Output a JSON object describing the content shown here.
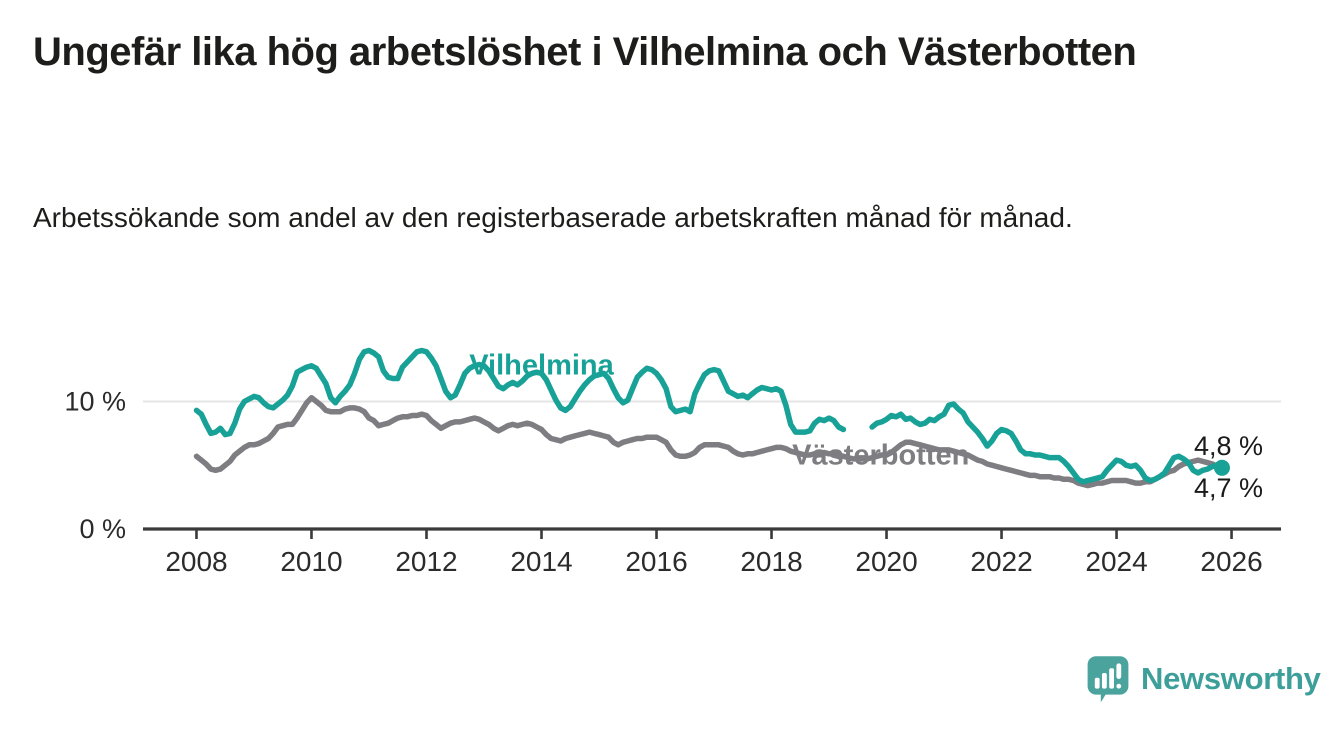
{
  "header": {
    "title": "Ungefär lika hög arbetslöshet i Vilhelmina och Västerbotten",
    "subtitle": "Arbetssökande som andel av den registerbaserade arbetskraften månad för månad."
  },
  "chart_data": {
    "type": "line",
    "unit": "%",
    "title": "Ungefär lika hög arbetslöshet i Vilhelmina och Västerbotten",
    "xlabel": "",
    "ylabel": "",
    "xlim": [
      2007.07,
      2026.86
    ],
    "ylim": [
      0,
      14.9
    ],
    "grid_values": [
      10
    ],
    "legend_position": "inline-labels",
    "x_ticks": [
      {
        "value": 2008,
        "label": "2008"
      },
      {
        "value": 2010,
        "label": "2010"
      },
      {
        "value": 2012,
        "label": "2012"
      },
      {
        "value": 2014,
        "label": "2014"
      },
      {
        "value": 2016,
        "label": "2016"
      },
      {
        "value": 2018,
        "label": "2018"
      },
      {
        "value": 2020,
        "label": "2020"
      },
      {
        "value": 2022,
        "label": "2022"
      },
      {
        "value": 2024,
        "label": "2024"
      },
      {
        "value": 2026,
        "label": "2026"
      }
    ],
    "y_ticks": [
      {
        "value": 0,
        "label": "0 %"
      },
      {
        "value": 10,
        "label": "10 %"
      }
    ],
    "series": [
      {
        "name": "Vilhelmina",
        "color": "#18a197",
        "line_width": 5.5,
        "end_dot": true,
        "label_anchor": {
          "x": 2014.0,
          "y": 12.9
        },
        "start": 2008.0,
        "points_per_year": 12,
        "values": [
          9.3,
          9.0,
          8.2,
          7.5,
          7.6,
          7.9,
          7.4,
          7.5,
          8.3,
          9.4,
          10.0,
          10.2,
          10.4,
          10.3,
          9.9,
          9.6,
          9.5,
          9.8,
          10.1,
          10.5,
          11.2,
          12.3,
          12.5,
          12.7,
          12.8,
          12.6,
          12.0,
          11.4,
          10.3,
          9.9,
          10.4,
          10.8,
          11.3,
          12.2,
          13.3,
          13.9,
          14.0,
          13.8,
          13.5,
          12.4,
          11.9,
          11.8,
          11.8,
          12.7,
          13.1,
          13.5,
          13.9,
          14.0,
          13.9,
          13.4,
          12.8,
          11.8,
          10.8,
          10.3,
          10.5,
          11.3,
          12.2,
          12.6,
          12.8,
          12.9,
          12.8,
          12.4,
          11.8,
          11.2,
          11.0,
          11.3,
          11.5,
          11.3,
          11.6,
          12.0,
          12.2,
          12.3,
          12.2,
          11.7,
          10.9,
          10.1,
          9.5,
          9.3,
          9.6,
          10.2,
          10.8,
          11.3,
          11.7,
          12.0,
          12.1,
          12.2,
          11.8,
          11.0,
          10.3,
          9.9,
          10.1,
          11.0,
          11.9,
          12.3,
          12.6,
          12.5,
          12.2,
          11.7,
          11.0,
          9.6,
          9.2,
          9.3,
          9.4,
          9.2,
          10.6,
          11.4,
          12.1,
          12.4,
          12.5,
          12.4,
          11.6,
          10.8,
          10.6,
          10.4,
          10.5,
          10.3,
          10.6,
          10.9,
          11.1,
          11.0,
          10.9,
          11.0,
          10.8,
          9.7,
          8.2,
          7.6,
          7.6,
          7.6,
          7.7,
          8.3,
          8.6,
          8.5,
          8.7,
          8.5,
          8.0,
          7.8,
          null,
          null,
          null,
          null,
          null,
          8.0,
          8.3,
          8.4,
          8.6,
          8.9,
          8.8,
          9.0,
          8.6,
          8.7,
          8.4,
          8.2,
          8.3,
          8.6,
          8.5,
          8.8,
          9.0,
          9.7,
          9.8,
          9.4,
          9.1,
          8.4,
          8.0,
          7.6,
          7.1,
          6.5,
          6.9,
          7.5,
          7.8,
          7.7,
          7.5,
          6.9,
          6.2,
          5.9,
          5.9,
          5.8,
          5.8,
          5.7,
          5.6,
          5.6,
          5.6,
          5.3,
          4.9,
          4.4,
          3.9,
          3.7,
          3.8,
          3.9,
          4.0,
          4.1,
          4.6,
          5.0,
          5.4,
          5.3,
          5.0,
          4.9,
          5.0,
          4.6,
          4.0,
          3.8,
          3.9,
          4.1,
          4.4,
          5.0,
          5.6,
          5.7,
          5.5,
          5.2,
          4.6,
          4.4,
          4.6,
          4.7,
          4.9,
          5.0,
          4.8
        ]
      },
      {
        "name": "Västerbotten",
        "color": "#7d7d82",
        "line_width": 5.5,
        "end_dot": false,
        "label_anchor": {
          "x": 2019.9,
          "y": 5.85
        },
        "start": 2008.0,
        "points_per_year": 12,
        "values": [
          5.7,
          5.4,
          5.1,
          4.7,
          4.6,
          4.7,
          5.0,
          5.3,
          5.8,
          6.1,
          6.4,
          6.6,
          6.6,
          6.7,
          6.9,
          7.1,
          7.5,
          8.0,
          8.1,
          8.2,
          8.2,
          8.7,
          9.3,
          9.9,
          10.3,
          10.0,
          9.7,
          9.3,
          9.2,
          9.2,
          9.2,
          9.4,
          9.5,
          9.5,
          9.4,
          9.2,
          8.7,
          8.5,
          8.1,
          8.2,
          8.3,
          8.5,
          8.7,
          8.8,
          8.8,
          8.9,
          8.9,
          9.0,
          8.9,
          8.5,
          8.2,
          7.9,
          8.1,
          8.3,
          8.4,
          8.4,
          8.5,
          8.6,
          8.7,
          8.6,
          8.4,
          8.2,
          7.9,
          7.7,
          7.9,
          8.1,
          8.2,
          8.1,
          8.2,
          8.3,
          8.2,
          8.0,
          7.8,
          7.4,
          7.1,
          7.0,
          6.9,
          7.1,
          7.2,
          7.3,
          7.4,
          7.5,
          7.6,
          7.5,
          7.4,
          7.3,
          7.2,
          6.8,
          6.6,
          6.8,
          6.9,
          7.0,
          7.1,
          7.1,
          7.2,
          7.2,
          7.2,
          7.0,
          6.8,
          6.2,
          5.8,
          5.7,
          5.7,
          5.8,
          6.0,
          6.4,
          6.6,
          6.6,
          6.6,
          6.6,
          6.5,
          6.4,
          6.1,
          5.9,
          5.8,
          5.9,
          5.9,
          6.0,
          6.1,
          6.2,
          6.3,
          6.4,
          6.4,
          6.3,
          6.1,
          6.0,
          5.9,
          5.8,
          5.8,
          5.9,
          5.9,
          6.0,
          5.9,
          5.9,
          5.8,
          5.7,
          5.6,
          5.5,
          5.5,
          5.5,
          5.5,
          5.6,
          5.7,
          5.8,
          5.8,
          6.0,
          6.3,
          6.6,
          6.8,
          6.8,
          6.7,
          6.6,
          6.5,
          6.4,
          6.3,
          6.2,
          6.2,
          6.2,
          6.1,
          6.0,
          5.9,
          5.8,
          5.6,
          5.4,
          5.3,
          5.1,
          5.0,
          4.9,
          4.8,
          4.7,
          4.6,
          4.5,
          4.4,
          4.3,
          4.2,
          4.2,
          4.1,
          4.1,
          4.1,
          4.0,
          4.0,
          3.9,
          3.9,
          3.8,
          3.6,
          3.5,
          3.4,
          3.5,
          3.6,
          3.6,
          3.7,
          3.8,
          3.8,
          3.8,
          3.8,
          3.7,
          3.6,
          3.6,
          3.7,
          3.7,
          3.9,
          4.1,
          4.3,
          4.5,
          4.6,
          4.9,
          5.1,
          5.2,
          5.3,
          5.4,
          5.3,
          5.2,
          5.1,
          4.9,
          4.7
        ]
      }
    ],
    "end_labels": [
      {
        "text": "4,8 %",
        "series": "Vilhelmina",
        "value": 4.8,
        "position": "above"
      },
      {
        "text": "4,7 %",
        "series": "Västerbotten",
        "value": 4.7,
        "position": "below"
      }
    ],
    "colors": {
      "axis": "#3a3a3a",
      "grid": "#e4e4e4",
      "tick_text": "#2b2b2b",
      "value_text": "#1a1a1a"
    }
  },
  "footer": {
    "brand": "Newsworthy",
    "brand_color": "#3d9f9a",
    "icon": "newsworthy-speech-bubble-chart-icon",
    "icon_color": "#4aa39d"
  }
}
